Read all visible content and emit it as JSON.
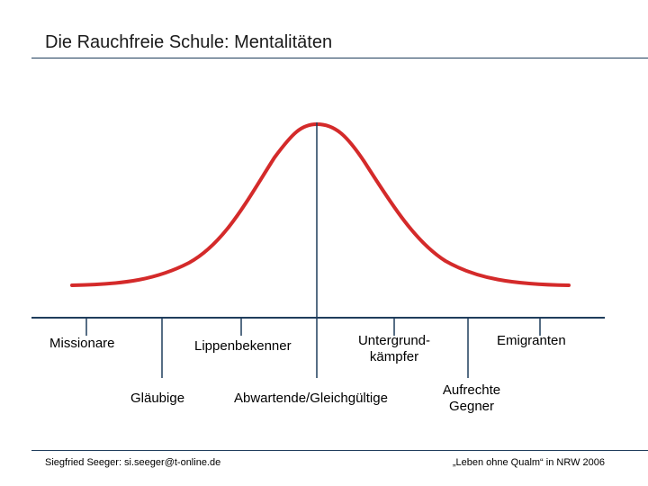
{
  "title": "Die Rauchfreie Schule: Mentalitäten",
  "categories": {
    "missionare": "Missionare",
    "glaeubige": "Gläubige",
    "lippenbekenner": "Lippenbekenner",
    "abwartende": "Abwartende/Gleichgültige",
    "untergrund_line1": "Untergrund-",
    "untergrund_line2": "kämpfer",
    "aufrechte_line1": "Aufrechte",
    "aufrechte_line2": "Gegner",
    "emigranten": "Emigranten"
  },
  "footer": {
    "left": "Siegfried Seeger: si.seeger@t-online.de",
    "right": "„Leben ohne Qualm“ in NRW 2006"
  },
  "colors": {
    "curve": "#d42a2a",
    "axis": "#1f3d5c",
    "rule": "#1f3d5c"
  }
}
